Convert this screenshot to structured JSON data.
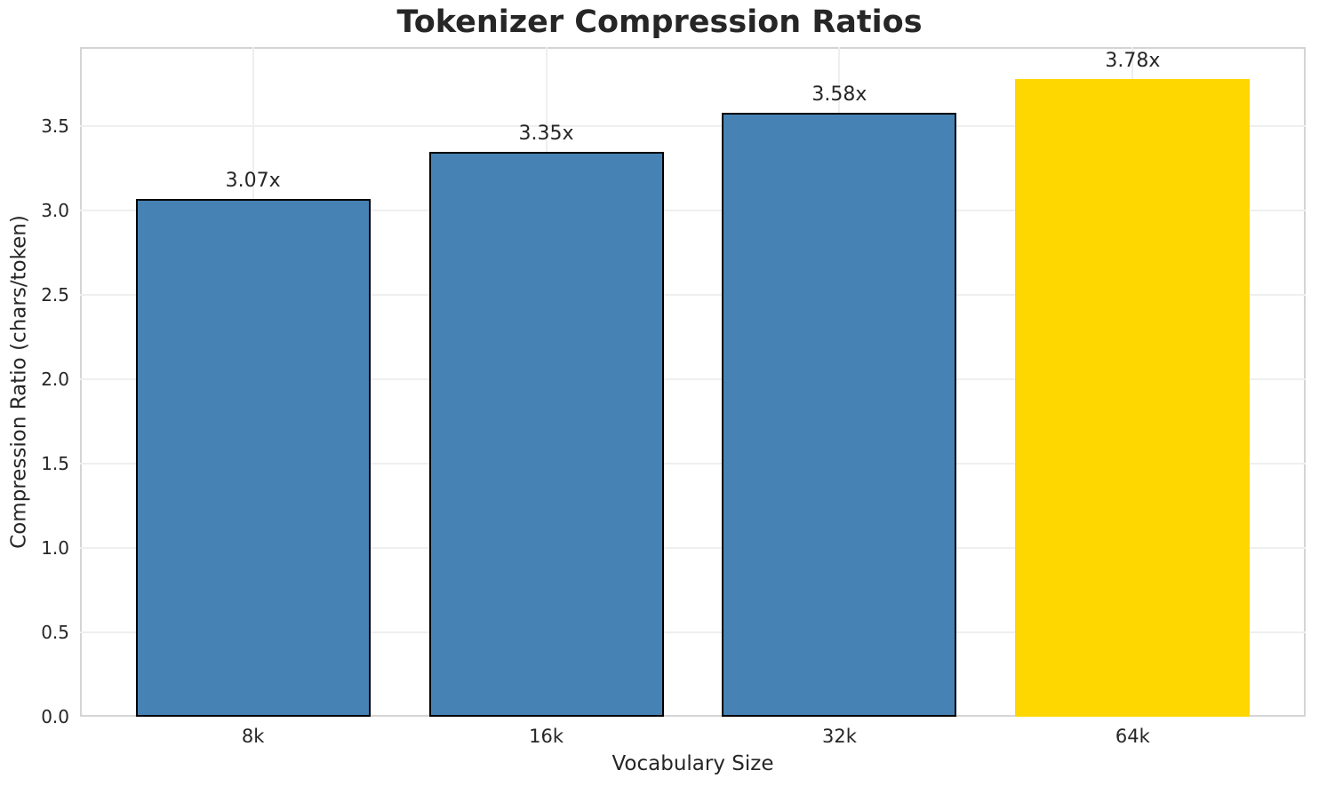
{
  "chart_data": {
    "type": "bar",
    "title": "Tokenizer Compression Ratios",
    "xlabel": "Vocabulary Size",
    "ylabel": "Compression Ratio (chars/token)",
    "categories": [
      "8k",
      "16k",
      "32k",
      "64k"
    ],
    "values": [
      3.07,
      3.35,
      3.58,
      3.78
    ],
    "bar_labels": [
      "3.07x",
      "3.35x",
      "3.58x",
      "3.78x"
    ],
    "bar_colors": [
      "#4682B4",
      "#4682B4",
      "#4682B4",
      "#FFD700"
    ],
    "bar_edge_colors": [
      "#000000",
      "#000000",
      "#000000",
      "none"
    ],
    "base_color": "#4682B4",
    "highlight_color": "#FFD700",
    "yticks": [
      0.0,
      0.5,
      1.0,
      1.5,
      2.0,
      2.5,
      3.0,
      3.5
    ],
    "ytick_labels": [
      "0.0",
      "0.5",
      "1.0",
      "1.5",
      "2.0",
      "2.5",
      "3.0",
      "3.5"
    ],
    "ylim": [
      0,
      3.97
    ],
    "xlim": [
      -0.59,
      3.59
    ],
    "bar_width": 0.8,
    "grid": true,
    "grid_axes": "both",
    "legend": null
  }
}
